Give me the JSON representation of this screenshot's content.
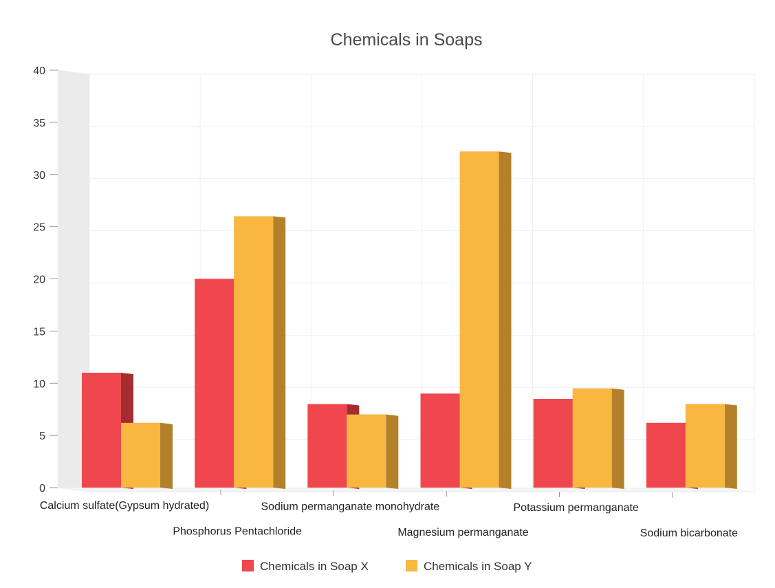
{
  "chart_data": {
    "type": "bar",
    "title": "Chemicals in Soaps",
    "xlabel": "",
    "ylabel": "",
    "ylim": [
      0,
      40
    ],
    "yticks": [
      0,
      5,
      10,
      15,
      20,
      25,
      30,
      35,
      40
    ],
    "grid": true,
    "legend_position": "bottom",
    "categories": [
      "Calcium sulfate(Gypsum hydrated)",
      "Phosphorus Pentachloride",
      "Sodium permanganate monohydrate",
      "Magnesium permanganate",
      "Potassium permanganate",
      "Sodium bicarbonate"
    ],
    "series": [
      {
        "name": "Chemicals in Soap X",
        "values": [
          11,
          20,
          8,
          9,
          8.5,
          6.2
        ]
      },
      {
        "name": "Chemicals in Soap Y",
        "values": [
          6.2,
          26,
          7,
          32.2,
          9.5,
          8
        ]
      }
    ]
  },
  "colors": {
    "series_x": "#ef474d",
    "series_x_side": "#a62c30",
    "series_y": "#f8b740",
    "series_y_side": "#b3812b",
    "wall": "#ebebeb",
    "grid": "#eeeeee"
  },
  "legend": {
    "items": [
      {
        "label": "Chemicals in Soap X",
        "color": "#ef474d"
      },
      {
        "label": "Chemicals in Soap Y",
        "color": "#f8b740"
      }
    ]
  }
}
